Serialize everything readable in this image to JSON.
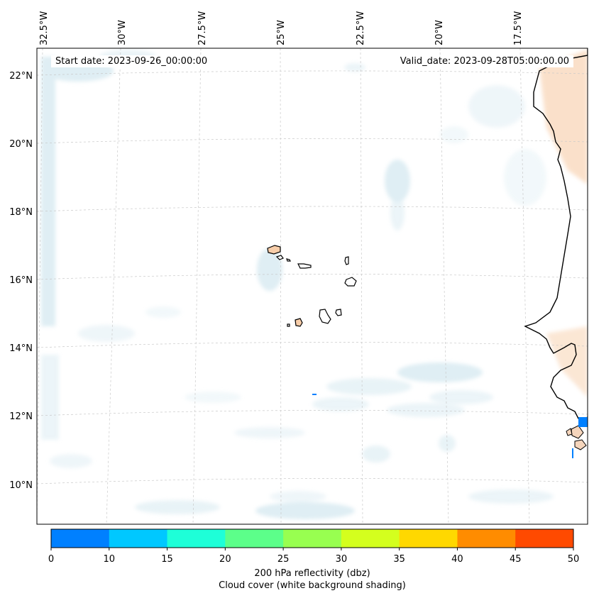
{
  "map": {
    "start_label": "Start date: 2023-09-26_00:00:00",
    "valid_label": "Valid_date: 2023-09-28T05:00:00.00",
    "longitude_labels": [
      "32.5°W",
      "30°W",
      "27.5°W",
      "25°W",
      "22.5°W",
      "20°W",
      "17.5°W"
    ],
    "latitude_labels": [
      "22°N",
      "20°N",
      "18°N",
      "16°N",
      "14°N",
      "12°N",
      "10°N"
    ],
    "region": "Cape Verde Islands and West African coast"
  },
  "colorbar": {
    "ticks": [
      "0",
      "10",
      "15",
      "20",
      "25",
      "30",
      "35",
      "40",
      "45",
      "50"
    ],
    "colors": [
      "#0080ff",
      "#00c8ff",
      "#1effd8",
      "#5cff8a",
      "#98ff50",
      "#d4ff1e",
      "#ffd800",
      "#ff8c00",
      "#ff4a00"
    ],
    "label_line1": "200 hPa reflectivity (dbz)",
    "label_line2": "Cloud cover (white background shading)"
  }
}
